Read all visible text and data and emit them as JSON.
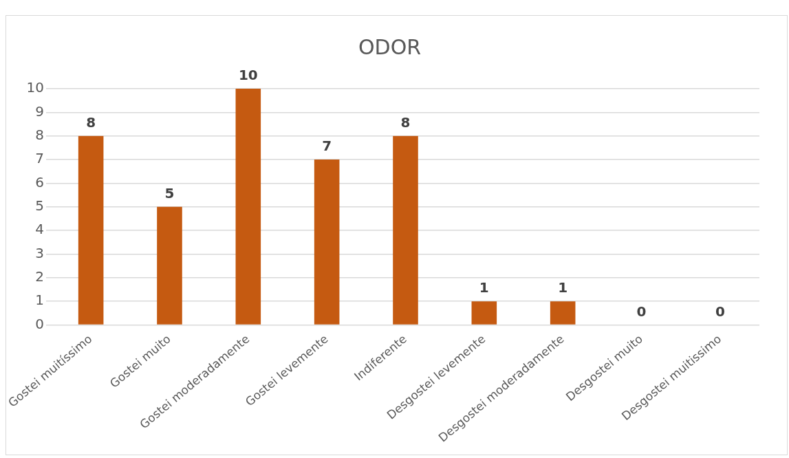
{
  "chart_data": {
    "type": "bar",
    "title": "ODOR",
    "categories": [
      "Gostei muitíssimo",
      "Gostei muito",
      "Gostei moderadamente",
      "Gostei levemente",
      "Indiferente",
      "Desgostei levemente",
      "Desgostei moderadamente",
      "Desgostei muito",
      "Desgostei muitissimo"
    ],
    "values": [
      8,
      5,
      10,
      7,
      8,
      1,
      1,
      0,
      0
    ],
    "color": "#c55a11",
    "ylim": [
      0,
      10
    ],
    "yticks": [
      0,
      1,
      2,
      3,
      4,
      5,
      6,
      7,
      8,
      9,
      10
    ],
    "grid": "y",
    "data_labels": true
  }
}
